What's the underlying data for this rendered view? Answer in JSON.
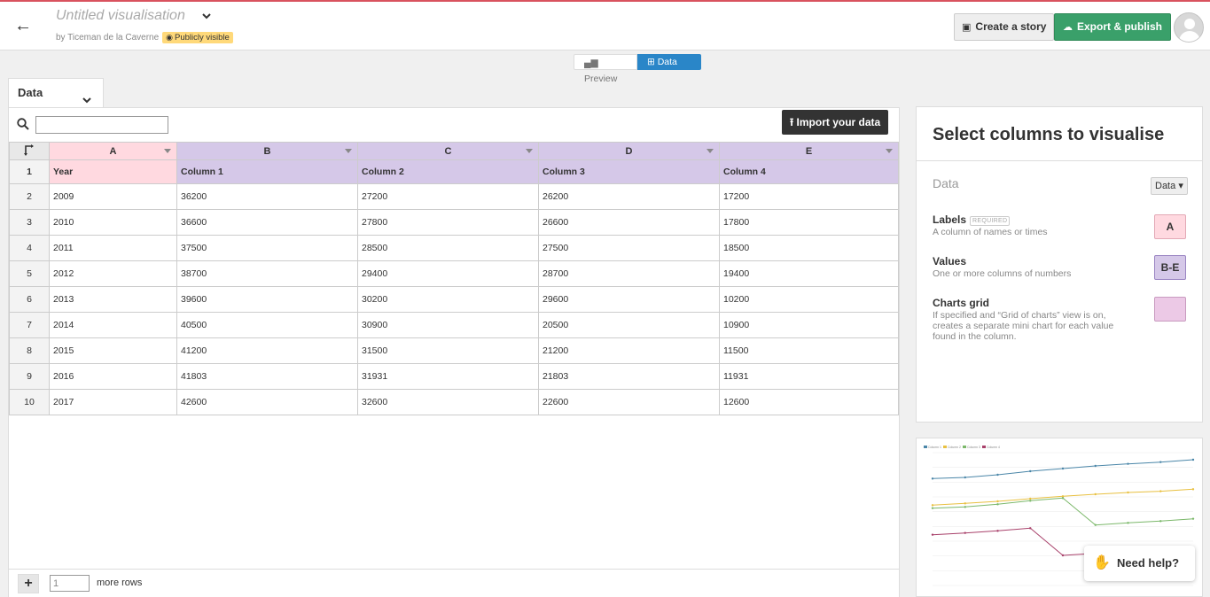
{
  "header": {
    "title": "Untitled visualisation",
    "byline": "by Ticeman de la Caverne",
    "visibility": "Publicly visible",
    "create_story": "Create a story",
    "export_publish": "Export & publish"
  },
  "modes": {
    "preview": "Preview",
    "data": "Data"
  },
  "sheet": {
    "tab_label": "Data",
    "search_placeholder": "",
    "import_label": "Import your data",
    "columns": [
      "A",
      "B",
      "C",
      "D",
      "E"
    ],
    "header_row": [
      "Year",
      "Column 1",
      "Column 2",
      "Column 3",
      "Column 4"
    ],
    "rows": [
      [
        "2009",
        "36200",
        "27200",
        "26200",
        "17200"
      ],
      [
        "2010",
        "36600",
        "27800",
        "26600",
        "17800"
      ],
      [
        "2011",
        "37500",
        "28500",
        "27500",
        "18500"
      ],
      [
        "2012",
        "38700",
        "29400",
        "28700",
        "19400"
      ],
      [
        "2013",
        "39600",
        "30200",
        "29600",
        "10200"
      ],
      [
        "2014",
        "40500",
        "30900",
        "20500",
        "10900"
      ],
      [
        "2015",
        "41200",
        "31500",
        "21200",
        "11500"
      ],
      [
        "2016",
        "41803",
        "31931",
        "21803",
        "11931"
      ],
      [
        "2017",
        "42600",
        "32600",
        "22600",
        "12600"
      ]
    ],
    "add_rows_value": "1",
    "more_rows_label": "more rows"
  },
  "panel": {
    "title": "Select columns to visualise",
    "dataset_label": "Data",
    "dataset_select": "Data",
    "bindings": [
      {
        "name": "Labels",
        "required": "REQUIRED",
        "desc": "A column of names or times",
        "value": "A"
      },
      {
        "name": "Values",
        "desc": "One or more columns of numbers",
        "value": "B-E"
      },
      {
        "name": "Charts grid",
        "desc": "If specified and “Grid of charts” view is on, creates a separate mini chart for each value found in the column.",
        "value": ""
      }
    ]
  },
  "preview_chart": {
    "series_colors": [
      "#4a86a8",
      "#e8c040",
      "#7bb86a",
      "#a8406a"
    ]
  },
  "help": {
    "label": "Need help?"
  },
  "chart_data": {
    "type": "line",
    "x": [
      "2009",
      "2010",
      "2011",
      "2012",
      "2013",
      "2014",
      "2015",
      "2016",
      "2017"
    ],
    "series": [
      {
        "name": "Column 1",
        "values": [
          36200,
          36600,
          37500,
          38700,
          39600,
          40500,
          41200,
          41803,
          42600
        ]
      },
      {
        "name": "Column 2",
        "values": [
          27200,
          27800,
          28500,
          29400,
          30200,
          30900,
          31500,
          31931,
          32600
        ]
      },
      {
        "name": "Column 3",
        "values": [
          26200,
          26600,
          27500,
          28700,
          29600,
          20500,
          21200,
          21803,
          22600
        ]
      },
      {
        "name": "Column 4",
        "values": [
          17200,
          17800,
          18500,
          19400,
          10200,
          10900,
          11500,
          11931,
          12600
        ]
      }
    ],
    "legend": "top-left",
    "ylim": [
      0,
      45000
    ]
  }
}
